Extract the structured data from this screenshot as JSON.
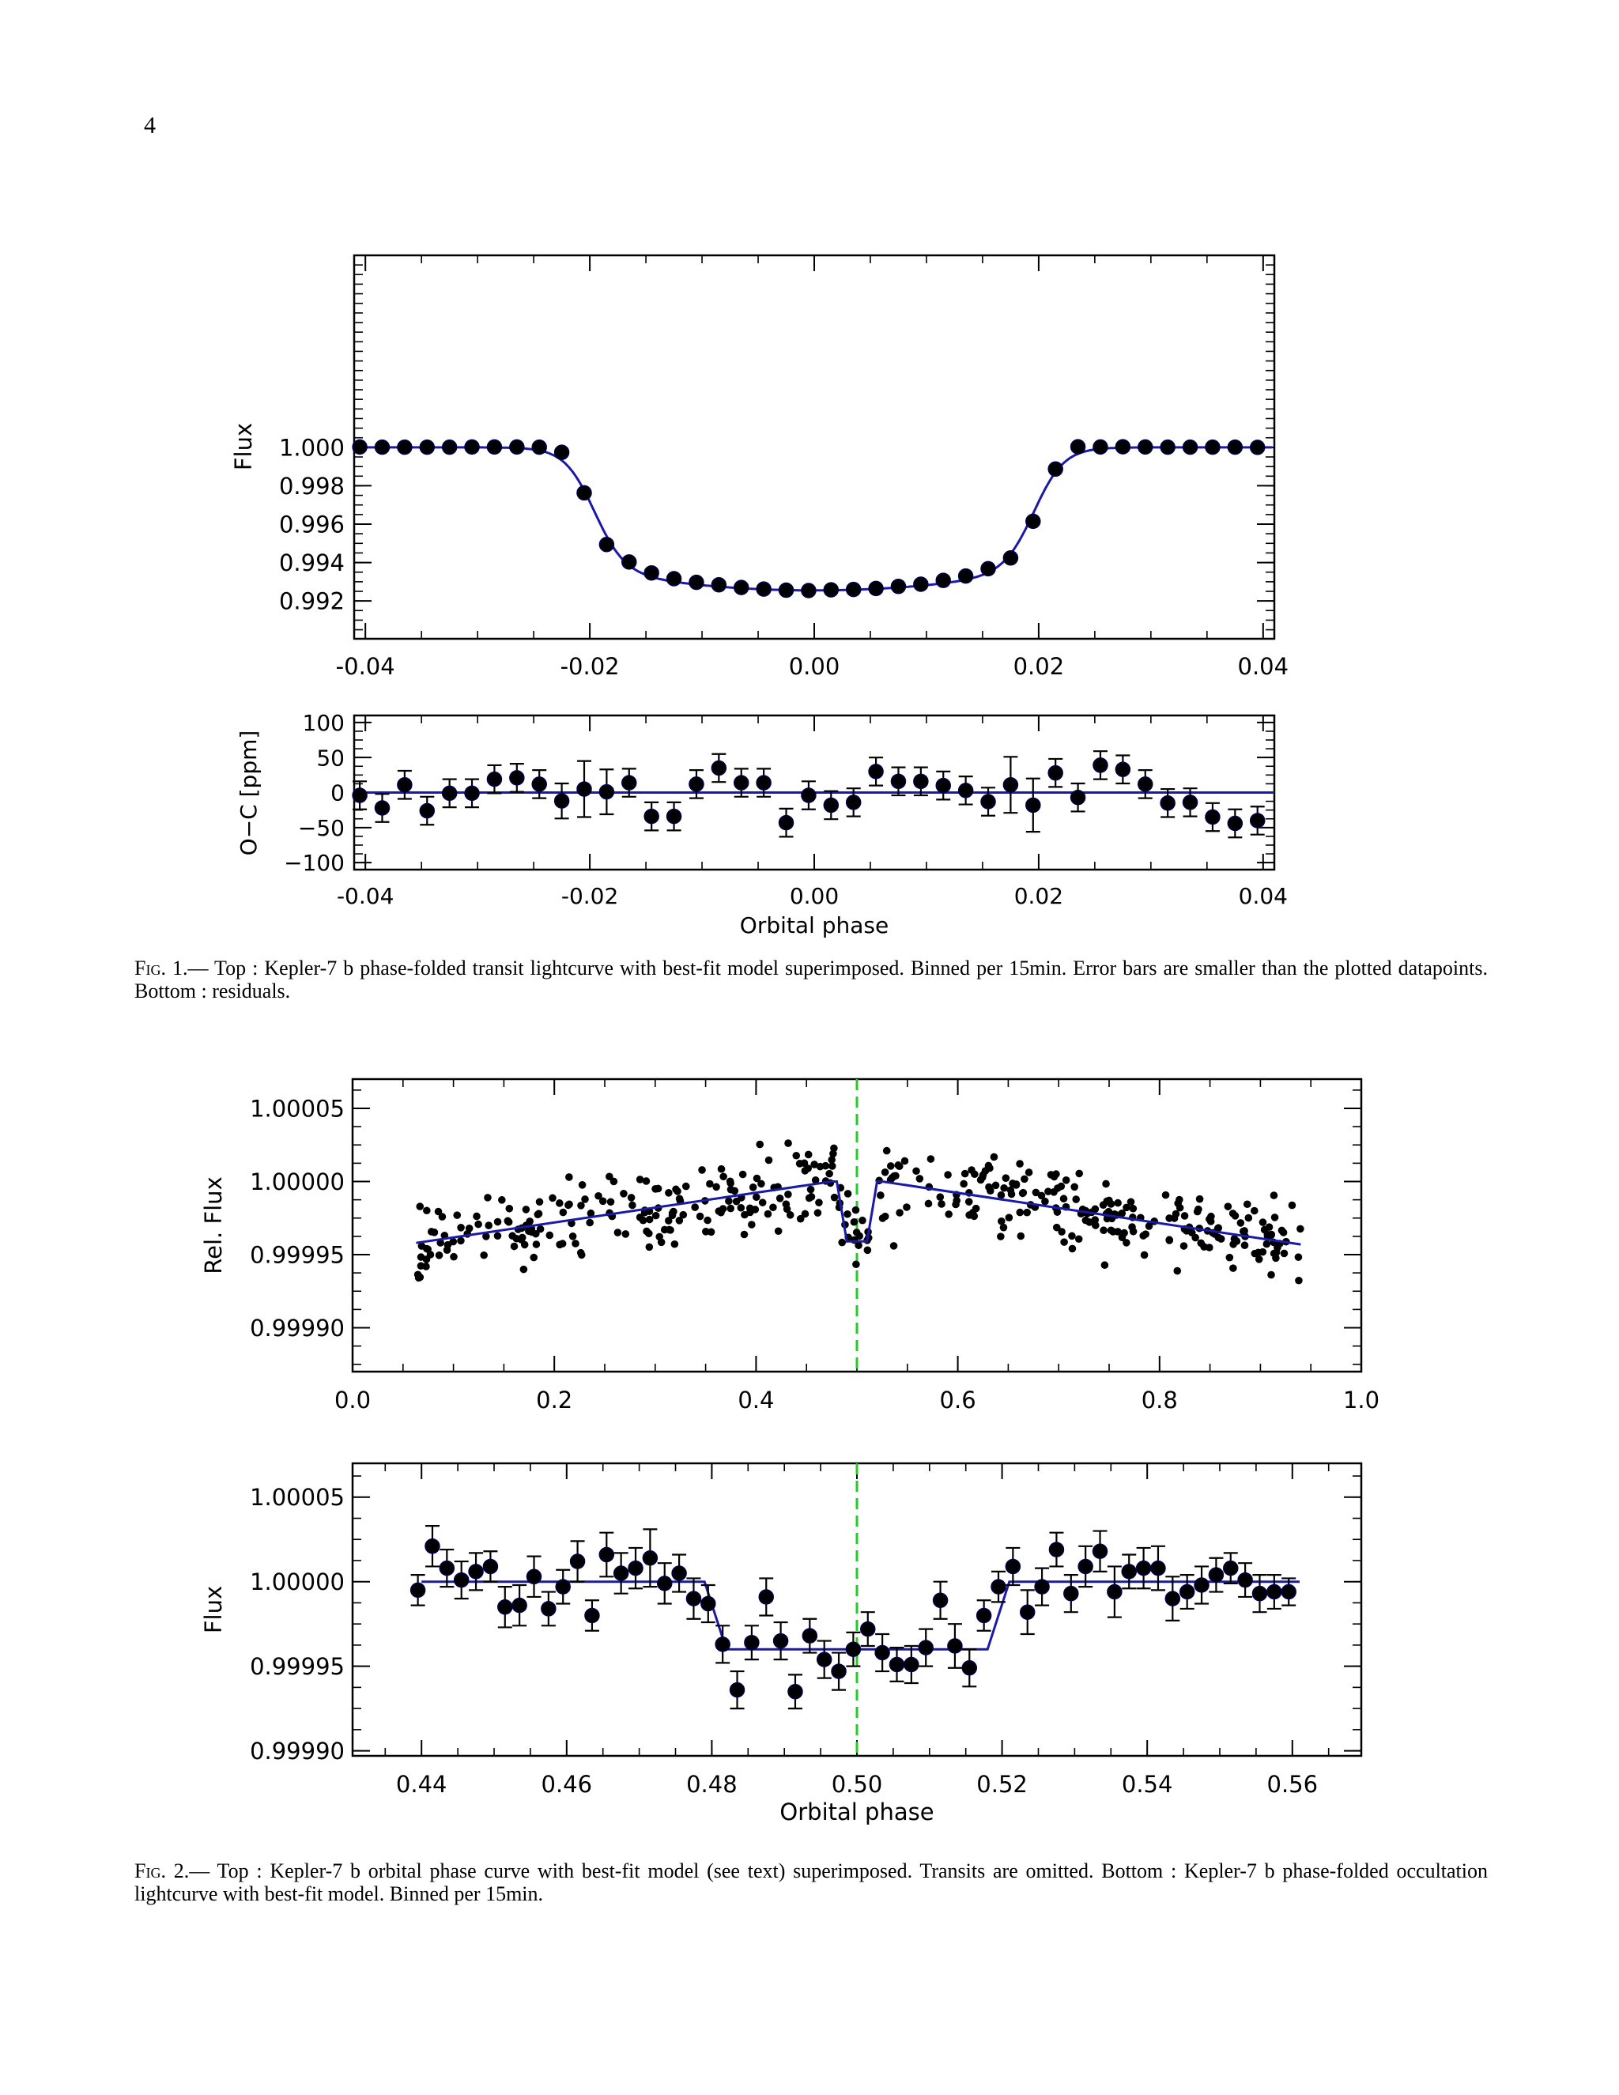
{
  "page": {
    "number": "4"
  },
  "figure1": {
    "caption_label": "Fig. 1.",
    "caption_text": "— Top : Kepler-7 b phase-folded transit lightcurve with best-fit model superimposed. Binned per 15min. Error bars are smaller than the plotted datapoints. Bottom : residuals."
  },
  "figure2": {
    "caption_label": "Fig. 2.",
    "caption_text": "— Top : Kepler-7 b orbital phase curve with best-fit model (see text) superimposed. Transits are omitted. Bottom : Kepler-7 b phase-folded occultation lightcurve with best-fit model. Binned per 15min."
  },
  "colors": {
    "model": "#1a1aa8",
    "points": "#000000",
    "midline": "#22cc22"
  },
  "chart_data": [
    {
      "id": "transit",
      "type": "scatter",
      "title": "",
      "xlabel": "",
      "ylabel": "Flux",
      "xlim": [
        -0.041,
        0.041
      ],
      "ylim": [
        0.99003,
        1.01
      ],
      "xticks": [
        "-0.04",
        "-0.02",
        "0.00",
        "0.02",
        "0.04"
      ],
      "yticks": [
        "0.992",
        "0.994",
        "0.996",
        "0.998",
        "1.000"
      ],
      "grid": false,
      "model": "line",
      "x": [
        -0.0405,
        -0.0385,
        -0.0365,
        -0.0345,
        -0.0325,
        -0.0305,
        -0.0285,
        -0.0265,
        -0.0245,
        -0.0225,
        -0.0205,
        -0.0185,
        -0.0165,
        -0.0145,
        -0.0125,
        -0.0105,
        -0.0085,
        -0.0065,
        -0.0045,
        -0.0025,
        -0.0005,
        0.0015,
        0.0035,
        0.0055,
        0.0075,
        0.0095,
        0.0115,
        0.0135,
        0.0155,
        0.0175,
        0.0195,
        0.0215,
        0.0235,
        0.0255,
        0.0275,
        0.0295,
        0.0315,
        0.0335,
        0.0355,
        0.0375,
        0.0395
      ],
      "y": [
        1.00002,
        1.00001,
        1.00001,
        1.00001,
        1.00001,
        1.00002,
        1.00002,
        1.00002,
        1.00001,
        0.99974,
        0.99763,
        0.99494,
        0.99403,
        0.99346,
        0.99316,
        0.99297,
        0.99284,
        0.9927,
        0.99262,
        0.99256,
        0.99254,
        0.99258,
        0.9926,
        0.99265,
        0.99276,
        0.99287,
        0.99307,
        0.9933,
        0.99368,
        0.99424,
        0.99615,
        0.99887,
        1.00003,
        1.00002,
        1.00003,
        1.00002,
        1.00001,
        1.00001,
        1.00001,
        1.00001,
        1.0
      ]
    },
    {
      "id": "residuals",
      "type": "scatter",
      "title": "",
      "xlabel": "Orbital phase",
      "ylabel": "O−C [ppm]",
      "xlim": [
        -0.041,
        0.041
      ],
      "ylim": [
        -110,
        110
      ],
      "xticks": [
        "-0.04",
        "-0.02",
        "0.00",
        "0.02",
        "0.04"
      ],
      "yticks": [
        "-100",
        "-50",
        "0",
        "50",
        "100"
      ],
      "grid": false,
      "x": [
        -0.0405,
        -0.0385,
        -0.0365,
        -0.0345,
        -0.0325,
        -0.0305,
        -0.0285,
        -0.0265,
        -0.0245,
        -0.0225,
        -0.0205,
        -0.0185,
        -0.0165,
        -0.0145,
        -0.0125,
        -0.0105,
        -0.0085,
        -0.0065,
        -0.0045,
        -0.0025,
        -0.0005,
        0.0015,
        0.0035,
        0.0055,
        0.0075,
        0.0095,
        0.0115,
        0.0135,
        0.0155,
        0.0175,
        0.0195,
        0.0215,
        0.0235,
        0.0255,
        0.0275,
        0.0295,
        0.0315,
        0.0335,
        0.0355,
        0.0375,
        0.0395
      ],
      "y": [
        -4,
        -22,
        11,
        -26,
        -1,
        -1,
        19,
        21,
        12,
        -12,
        5,
        1,
        14,
        -34,
        -34,
        12,
        35,
        14,
        14,
        -43,
        -4,
        -18,
        -14,
        30,
        16,
        16,
        10,
        3,
        -13,
        11,
        -18,
        28,
        -7,
        39,
        33,
        12,
        -15,
        -14,
        -35,
        -44,
        -40
      ],
      "err": [
        20,
        20,
        20,
        20,
        20,
        20,
        20,
        20,
        20,
        25,
        40,
        32,
        20,
        20,
        20,
        20,
        20,
        20,
        20,
        20,
        20,
        20,
        20,
        20,
        20,
        20,
        20,
        20,
        20,
        40,
        38,
        20,
        20,
        20,
        20,
        20,
        20,
        20,
        20,
        20,
        20
      ]
    },
    {
      "id": "phase-curve",
      "type": "scatter",
      "title": "",
      "xlabel": "",
      "ylabel": "Rel. Flux",
      "xlim": [
        0.0,
        1.0
      ],
      "ylim": [
        0.99987,
        1.00007
      ],
      "xticks": [
        "0.0",
        "0.2",
        "0.4",
        "0.6",
        "0.8",
        "1.0"
      ],
      "yticks": [
        "0.99990",
        "0.99995",
        "1.00000",
        "1.00005"
      ],
      "grid": false,
      "n_points": 440,
      "vline_x": 0.5,
      "model": {
        "x": [
          0.063,
          0.475,
          0.48,
          0.49,
          0.51,
          0.52,
          0.525,
          0.94
        ],
        "y": [
          0.999958,
          1.0,
          1.0,
          0.999959,
          0.999959,
          1.0,
          1.0,
          0.999957
        ]
      }
    },
    {
      "id": "occultation",
      "type": "scatter",
      "title": "",
      "xlabel": "Orbital phase",
      "ylabel": "Flux",
      "xlim": [
        0.4305,
        0.5695
      ],
      "ylim": [
        0.999897,
        1.00007
      ],
      "xticks": [
        "0.44",
        "0.46",
        "0.48",
        "0.50",
        "0.52",
        "0.54",
        "0.56"
      ],
      "yticks": [
        "0.99990",
        "0.99995",
        "1.00000",
        "1.00005"
      ],
      "grid": false,
      "vline_x": 0.5,
      "model": {
        "x": [
          0.44,
          0.479,
          0.482,
          0.518,
          0.521,
          0.561
        ],
        "y": [
          1.0,
          1.0,
          0.99996,
          0.99996,
          1.0,
          1.0
        ]
      },
      "x": [
        0.4395,
        0.4415,
        0.4435,
        0.4455,
        0.4475,
        0.4495,
        0.4515,
        0.4535,
        0.4555,
        0.4575,
        0.4595,
        0.4615,
        0.4635,
        0.4655,
        0.4675,
        0.4695,
        0.4715,
        0.4735,
        0.4755,
        0.4775,
        0.4795,
        0.4815,
        0.4835,
        0.4855,
        0.4875,
        0.4895,
        0.4915,
        0.4935,
        0.4955,
        0.4975,
        0.4995,
        0.5015,
        0.5035,
        0.5055,
        0.5075,
        0.5095,
        0.5115,
        0.5135,
        0.5155,
        0.5175,
        0.5195,
        0.5215,
        0.5235,
        0.5255,
        0.5275,
        0.5295,
        0.5315,
        0.5335,
        0.5355,
        0.5375,
        0.5395,
        0.5415,
        0.5435,
        0.5455,
        0.5475,
        0.5495,
        0.5515,
        0.5535,
        0.5555,
        0.5575,
        0.5595
      ],
      "y": [
        0.999995,
        1.000021,
        1.000008,
        1.000001,
        1.000006,
        1.000009,
        0.999985,
        0.999986,
        1.000003,
        0.999984,
        0.999997,
        1.000012,
        0.99998,
        1.000016,
        1.000005,
        1.000008,
        1.000014,
        0.999999,
        1.000005,
        0.99999,
        0.999987,
        0.999963,
        0.999936,
        0.999964,
        0.999991,
        0.999965,
        0.999935,
        0.999968,
        0.999954,
        0.999947,
        0.99996,
        0.999972,
        0.999958,
        0.999951,
        0.999951,
        0.999961,
        0.999989,
        0.999962,
        0.999949,
        0.99998,
        0.999997,
        1.000009,
        0.999982,
        0.999997,
        1.000019,
        0.999993,
        1.000009,
        1.000018,
        0.999994,
        1.000006,
        1.000008,
        1.000008,
        0.99999,
        0.999994,
        0.999998,
        1.000004,
        1.000008,
        1.000001,
        0.999993,
        0.999994,
        0.999994
      ],
      "err": [
        9e-06,
        1.2e-05,
        1.1e-05,
        1.1e-05,
        1.1e-05,
        9e-06,
        1.2e-05,
        1.2e-05,
        1.2e-05,
        1e-05,
        1e-05,
        1.2e-05,
        9e-06,
        1.3e-05,
        1.2e-05,
        1.2e-05,
        1.7e-05,
        1.2e-05,
        1.1e-05,
        1.2e-05,
        1.1e-05,
        1.1e-05,
        1.1e-05,
        1e-05,
        1.1e-05,
        1.1e-05,
        1e-05,
        1e-05,
        1.1e-05,
        1.1e-05,
        1e-05,
        1e-05,
        1.1e-05,
        1e-05,
        1.1e-05,
        1.1e-05,
        1.1e-05,
        1.3e-05,
        1.1e-05,
        9e-06,
        9e-06,
        1.1e-05,
        1.3e-05,
        1.1e-05,
        1e-05,
        1.1e-05,
        1.2e-05,
        1.2e-05,
        1.5e-05,
        1e-05,
        1.2e-05,
        1.3e-05,
        1.3e-05,
        1e-05,
        1.1e-05,
        1e-05,
        9e-06,
        1e-05,
        1.1e-05,
        1e-05,
        8e-06
      ]
    }
  ]
}
